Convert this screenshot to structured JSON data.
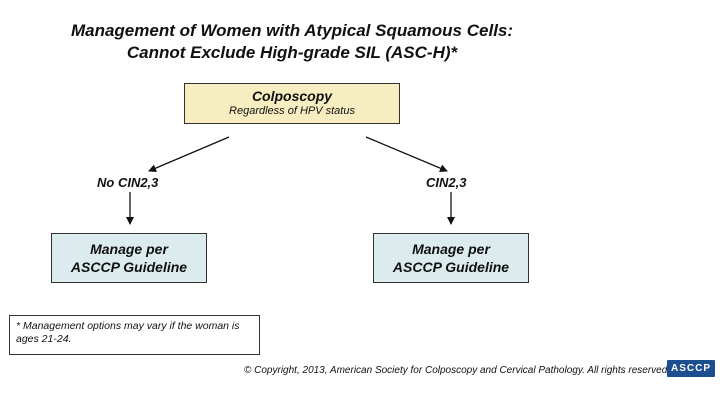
{
  "title": {
    "line1": "Management of Women with Atypical Squamous Cells:",
    "line2": "Cannot Exclude High-grade SIL (ASC-H)*"
  },
  "top_box": {
    "label": "Colposcopy",
    "sublabel": "Regardless of HPV status"
  },
  "branches": {
    "left": {
      "label": "No CIN2,3"
    },
    "right": {
      "label": "CIN2,3"
    }
  },
  "outcomes": {
    "left": {
      "line1": "Manage per",
      "line2": "ASCCP Guideline"
    },
    "right": {
      "line1": "Manage per",
      "line2": "ASCCP Guideline"
    }
  },
  "footnote": "* Management options may vary if the woman is ages 21-24.",
  "copyright": "© Copyright, 2013, American Society for Colposcopy and Cervical Pathology. All rights reserved.",
  "logo": {
    "text": "ASCCP"
  },
  "colors": {
    "top_box_fill": "#f6edc1",
    "outcome_box_fill": "#dcebee",
    "logo_blue": "#1d4e8f"
  }
}
